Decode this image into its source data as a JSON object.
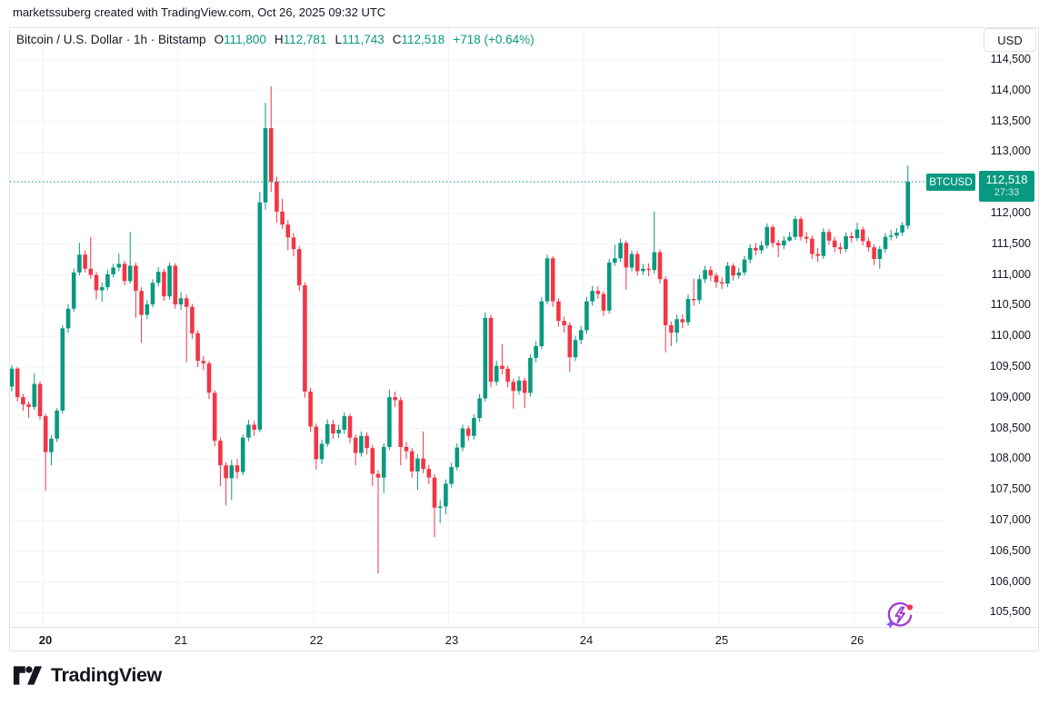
{
  "attribution": "marketssuberg created with TradingView.com, Oct 26, 2025 09:32 UTC",
  "header": {
    "symbol_title": "Bitcoin / U.S. Dollar · 1h · Bitstamp",
    "ohlc": [
      {
        "label": "O",
        "value": "111,800"
      },
      {
        "label": "H",
        "value": "112,781"
      },
      {
        "label": "L",
        "value": "111,743"
      },
      {
        "label": "C",
        "value": "112,518"
      }
    ],
    "change": "+718 (+0.64%)"
  },
  "price_axis": {
    "currency_button": "USD",
    "labels": [
      {
        "p": 114500,
        "t": "114,500"
      },
      {
        "p": 114000,
        "t": "114,000"
      },
      {
        "p": 113500,
        "t": "113,500"
      },
      {
        "p": 113000,
        "t": "113,000"
      },
      {
        "p": 112000,
        "t": "112,000"
      },
      {
        "p": 111500,
        "t": "111,500"
      },
      {
        "p": 111000,
        "t": "111,000"
      },
      {
        "p": 110500,
        "t": "110,500"
      },
      {
        "p": 110000,
        "t": "110,000"
      },
      {
        "p": 109500,
        "t": "109,500"
      },
      {
        "p": 109000,
        "t": "109,000"
      },
      {
        "p": 108500,
        "t": "108,500"
      },
      {
        "p": 108000,
        "t": "108,000"
      },
      {
        "p": 107500,
        "t": "107,500"
      },
      {
        "p": 107000,
        "t": "107,000"
      },
      {
        "p": 106500,
        "t": "106,500"
      },
      {
        "p": 106000,
        "t": "106,000"
      },
      {
        "p": 105500,
        "t": "105,500"
      }
    ],
    "price_tag": {
      "symbol": "BTCUSD",
      "price": "112,518",
      "countdown": "27:33"
    }
  },
  "time_axis": {
    "labels": [
      {
        "text": "20",
        "candle_index": 6,
        "bold": true
      },
      {
        "text": "21",
        "candle_index": 30,
        "bold": false
      },
      {
        "text": "22",
        "candle_index": 54,
        "bold": false
      },
      {
        "text": "23",
        "candle_index": 78,
        "bold": false
      },
      {
        "text": "24",
        "candle_index": 102,
        "bold": false
      },
      {
        "text": "25",
        "candle_index": 126,
        "bold": false
      },
      {
        "text": "26",
        "candle_index": 150,
        "bold": false
      }
    ]
  },
  "logo": {
    "text": "TradingView"
  },
  "colors": {
    "up": "#089981",
    "down": "#f23645",
    "grid": "#f0f3fa",
    "border": "#e0e3eb",
    "text": "#131722"
  },
  "chart_data": {
    "type": "candlestick",
    "title": "Bitcoin / U.S. Dollar",
    "symbol": "BTCUSD",
    "exchange": "Bitstamp",
    "interval": "1h",
    "visible_range": "Oct 19 18:00 - Oct 26 10:00 UTC, hourly candles",
    "current_price": 112518,
    "last_candle": {
      "open": 111800,
      "high": 112781,
      "low": 111743,
      "close": 112518,
      "change": "+718 (+0.64%)"
    },
    "y_axis": {
      "tick_step": 500,
      "shown_min": 105500,
      "shown_max": 114500,
      "grid": true,
      "legend_position": "none"
    },
    "grid_prices": [
      105500,
      106000,
      106500,
      107000,
      107500,
      108000,
      108500,
      109000,
      109500,
      110000,
      110500,
      111000,
      111500,
      112000,
      112500,
      113000,
      113500,
      114000,
      114500
    ],
    "candles_format": [
      "open",
      "high",
      "low",
      "close"
    ],
    "candles": [
      [
        109180,
        109530,
        109100,
        109475
      ],
      [
        109475,
        109500,
        108940,
        109010
      ],
      [
        109010,
        109060,
        108790,
        108890
      ],
      [
        108890,
        108940,
        108670,
        108850
      ],
      [
        108850,
        109400,
        108800,
        109225
      ],
      [
        109225,
        109270,
        108640,
        108700
      ],
      [
        108700,
        108740,
        107490,
        108115
      ],
      [
        108115,
        108390,
        107900,
        108335
      ],
      [
        108335,
        108830,
        108280,
        108790
      ],
      [
        108790,
        110180,
        108740,
        110130
      ],
      [
        110130,
        110520,
        110060,
        110450
      ],
      [
        110450,
        111100,
        110400,
        111040
      ],
      [
        111040,
        111520,
        110990,
        111330
      ],
      [
        111330,
        111400,
        111040,
        111100
      ],
      [
        111100,
        111620,
        110940,
        111000
      ],
      [
        111000,
        111050,
        110600,
        110750
      ],
      [
        110750,
        110880,
        110560,
        110800
      ],
      [
        110800,
        111080,
        110750,
        111010
      ],
      [
        111010,
        111180,
        110960,
        111120
      ],
      [
        111120,
        111350,
        111060,
        111180
      ],
      [
        111180,
        111230,
        110830,
        110900
      ],
      [
        110900,
        111700,
        110860,
        111150
      ],
      [
        111150,
        111200,
        110300,
        110740
      ],
      [
        110740,
        110800,
        109890,
        110350
      ],
      [
        110350,
        110590,
        110280,
        110520
      ],
      [
        110520,
        110930,
        110470,
        110870
      ],
      [
        110870,
        111130,
        110810,
        111050
      ],
      [
        111050,
        111100,
        110580,
        110650
      ],
      [
        110650,
        111200,
        110600,
        111150
      ],
      [
        111150,
        111190,
        110450,
        110520
      ],
      [
        110520,
        110720,
        110430,
        110620
      ],
      [
        110620,
        110680,
        109580,
        110480
      ],
      [
        110480,
        110530,
        109960,
        110050
      ],
      [
        110050,
        110100,
        109500,
        109600
      ],
      [
        109600,
        109680,
        109450,
        109560
      ],
      [
        109560,
        109600,
        108980,
        109080
      ],
      [
        109080,
        109120,
        108210,
        108300
      ],
      [
        108300,
        108350,
        107560,
        107900
      ],
      [
        107900,
        107950,
        107250,
        107690
      ],
      [
        107690,
        107990,
        107330,
        107900
      ],
      [
        107900,
        108000,
        107680,
        107790
      ],
      [
        107790,
        108400,
        107740,
        108350
      ],
      [
        108350,
        108640,
        108290,
        108560
      ],
      [
        108560,
        108620,
        108380,
        108480
      ],
      [
        108480,
        112350,
        108440,
        112180
      ],
      [
        112180,
        113800,
        112060,
        113390
      ],
      [
        113390,
        114070,
        112350,
        112520
      ],
      [
        112520,
        112600,
        111850,
        112030
      ],
      [
        112030,
        112240,
        111750,
        111820
      ],
      [
        111820,
        111890,
        111400,
        111610
      ],
      [
        111610,
        111680,
        111300,
        111420
      ],
      [
        111420,
        111470,
        110740,
        110830
      ],
      [
        110830,
        110880,
        109000,
        109100
      ],
      [
        109100,
        109160,
        108440,
        108530
      ],
      [
        108530,
        108580,
        107830,
        108000
      ],
      [
        108000,
        108320,
        107920,
        108250
      ],
      [
        108250,
        108650,
        108200,
        108570
      ],
      [
        108570,
        108640,
        108330,
        108420
      ],
      [
        108420,
        108560,
        108340,
        108480
      ],
      [
        108480,
        108760,
        108410,
        108700
      ],
      [
        108700,
        108740,
        108260,
        108350
      ],
      [
        108350,
        108400,
        107900,
        108100
      ],
      [
        108100,
        108450,
        108040,
        108380
      ],
      [
        108380,
        108440,
        108080,
        108180
      ],
      [
        108180,
        108230,
        107560,
        107760
      ],
      [
        107760,
        107820,
        106140,
        107700
      ],
      [
        107700,
        108260,
        107450,
        108200
      ],
      [
        108200,
        109130,
        108150,
        109010
      ],
      [
        109010,
        109100,
        108850,
        108960
      ],
      [
        108960,
        109010,
        107900,
        108200
      ],
      [
        108200,
        108280,
        108000,
        108130
      ],
      [
        108130,
        108180,
        107700,
        107800
      ],
      [
        107800,
        108080,
        107500,
        108010
      ],
      [
        108010,
        108450,
        107770,
        107840
      ],
      [
        107840,
        107910,
        107590,
        107700
      ],
      [
        107700,
        107760,
        106730,
        107210
      ],
      [
        107210,
        107330,
        106960,
        107230
      ],
      [
        107230,
        107670,
        107100,
        107600
      ],
      [
        107600,
        107940,
        107540,
        107870
      ],
      [
        107870,
        108260,
        107820,
        108190
      ],
      [
        108190,
        108560,
        108130,
        108500
      ],
      [
        108500,
        108550,
        108300,
        108380
      ],
      [
        108380,
        108730,
        108320,
        108670
      ],
      [
        108670,
        109060,
        108610,
        108990
      ],
      [
        108990,
        110390,
        108940,
        110300
      ],
      [
        110300,
        110350,
        109170,
        109260
      ],
      [
        109260,
        109600,
        109200,
        109520
      ],
      [
        109520,
        109870,
        109380,
        109470
      ],
      [
        109470,
        109520,
        109170,
        109260
      ],
      [
        109260,
        109310,
        108820,
        109110
      ],
      [
        109110,
        109350,
        109050,
        109280
      ],
      [
        109280,
        109330,
        108830,
        109080
      ],
      [
        109080,
        109710,
        109020,
        109650
      ],
      [
        109650,
        109920,
        109580,
        109840
      ],
      [
        109840,
        110640,
        109790,
        110570
      ],
      [
        110570,
        111330,
        110520,
        111270
      ],
      [
        111270,
        111310,
        110480,
        110570
      ],
      [
        110570,
        110620,
        110160,
        110250
      ],
      [
        110250,
        110320,
        110060,
        110180
      ],
      [
        110180,
        110230,
        109420,
        109660
      ],
      [
        109660,
        110010,
        109600,
        109940
      ],
      [
        109940,
        110170,
        109870,
        110100
      ],
      [
        110100,
        110640,
        110040,
        110570
      ],
      [
        110570,
        110820,
        110500,
        110740
      ],
      [
        110740,
        110810,
        110610,
        110690
      ],
      [
        110690,
        110730,
        110330,
        110420
      ],
      [
        110420,
        111260,
        110370,
        111200
      ],
      [
        111200,
        111490,
        111150,
        111270
      ],
      [
        111270,
        111590,
        111210,
        111520
      ],
      [
        111520,
        111560,
        110760,
        111120
      ],
      [
        111120,
        111400,
        111060,
        111340
      ],
      [
        111340,
        111390,
        110990,
        111060
      ],
      [
        111060,
        111180,
        111000,
        111100
      ],
      [
        111100,
        111190,
        110980,
        111080
      ],
      [
        111080,
        112030,
        111020,
        111370
      ],
      [
        111370,
        111420,
        110860,
        110930
      ],
      [
        110930,
        110980,
        109740,
        110180
      ],
      [
        110180,
        110240,
        109840,
        110060
      ],
      [
        110060,
        110350,
        109900,
        110280
      ],
      [
        110280,
        110360,
        110130,
        110230
      ],
      [
        110230,
        110680,
        110170,
        110610
      ],
      [
        110610,
        110940,
        110500,
        110590
      ],
      [
        110590,
        111000,
        110530,
        110930
      ],
      [
        110930,
        111150,
        110870,
        111080
      ],
      [
        111080,
        111140,
        110900,
        110990
      ],
      [
        110990,
        111040,
        110790,
        110880
      ],
      [
        110880,
        110960,
        110770,
        110860
      ],
      [
        110860,
        111210,
        110800,
        111150
      ],
      [
        111150,
        111190,
        110910,
        110990
      ],
      [
        110990,
        111120,
        110940,
        111040
      ],
      [
        111040,
        111310,
        110990,
        111250
      ],
      [
        111250,
        111500,
        111190,
        111440
      ],
      [
        111440,
        111520,
        111320,
        111400
      ],
      [
        111400,
        111550,
        111340,
        111480
      ],
      [
        111480,
        111840,
        111430,
        111780
      ],
      [
        111780,
        111820,
        111450,
        111520
      ],
      [
        111520,
        111570,
        111290,
        111480
      ],
      [
        111480,
        111630,
        111420,
        111560
      ],
      [
        111560,
        111700,
        111540,
        111620
      ],
      [
        111620,
        111960,
        111570,
        111910
      ],
      [
        111910,
        111950,
        111560,
        111620
      ],
      [
        111620,
        111700,
        111510,
        111590
      ],
      [
        111590,
        111640,
        111260,
        111340
      ],
      [
        111340,
        111440,
        111210,
        111310
      ],
      [
        111310,
        111760,
        111260,
        111700
      ],
      [
        111700,
        111750,
        111490,
        111560
      ],
      [
        111560,
        111620,
        111370,
        111450
      ],
      [
        111450,
        111520,
        111340,
        111420
      ],
      [
        111420,
        111690,
        111370,
        111630
      ],
      [
        111630,
        111700,
        111530,
        111600
      ],
      [
        111600,
        111850,
        111550,
        111740
      ],
      [
        111740,
        111790,
        111480,
        111550
      ],
      [
        111550,
        111610,
        111380,
        111450
      ],
      [
        111450,
        111500,
        111160,
        111260
      ],
      [
        111260,
        111470,
        111100,
        111420
      ],
      [
        111420,
        111680,
        111360,
        111620
      ],
      [
        111620,
        111730,
        111560,
        111640
      ],
      [
        111640,
        111760,
        111590,
        111690
      ],
      [
        111690,
        111860,
        111640,
        111810
      ],
      [
        111800,
        112781,
        111743,
        112518
      ]
    ]
  }
}
